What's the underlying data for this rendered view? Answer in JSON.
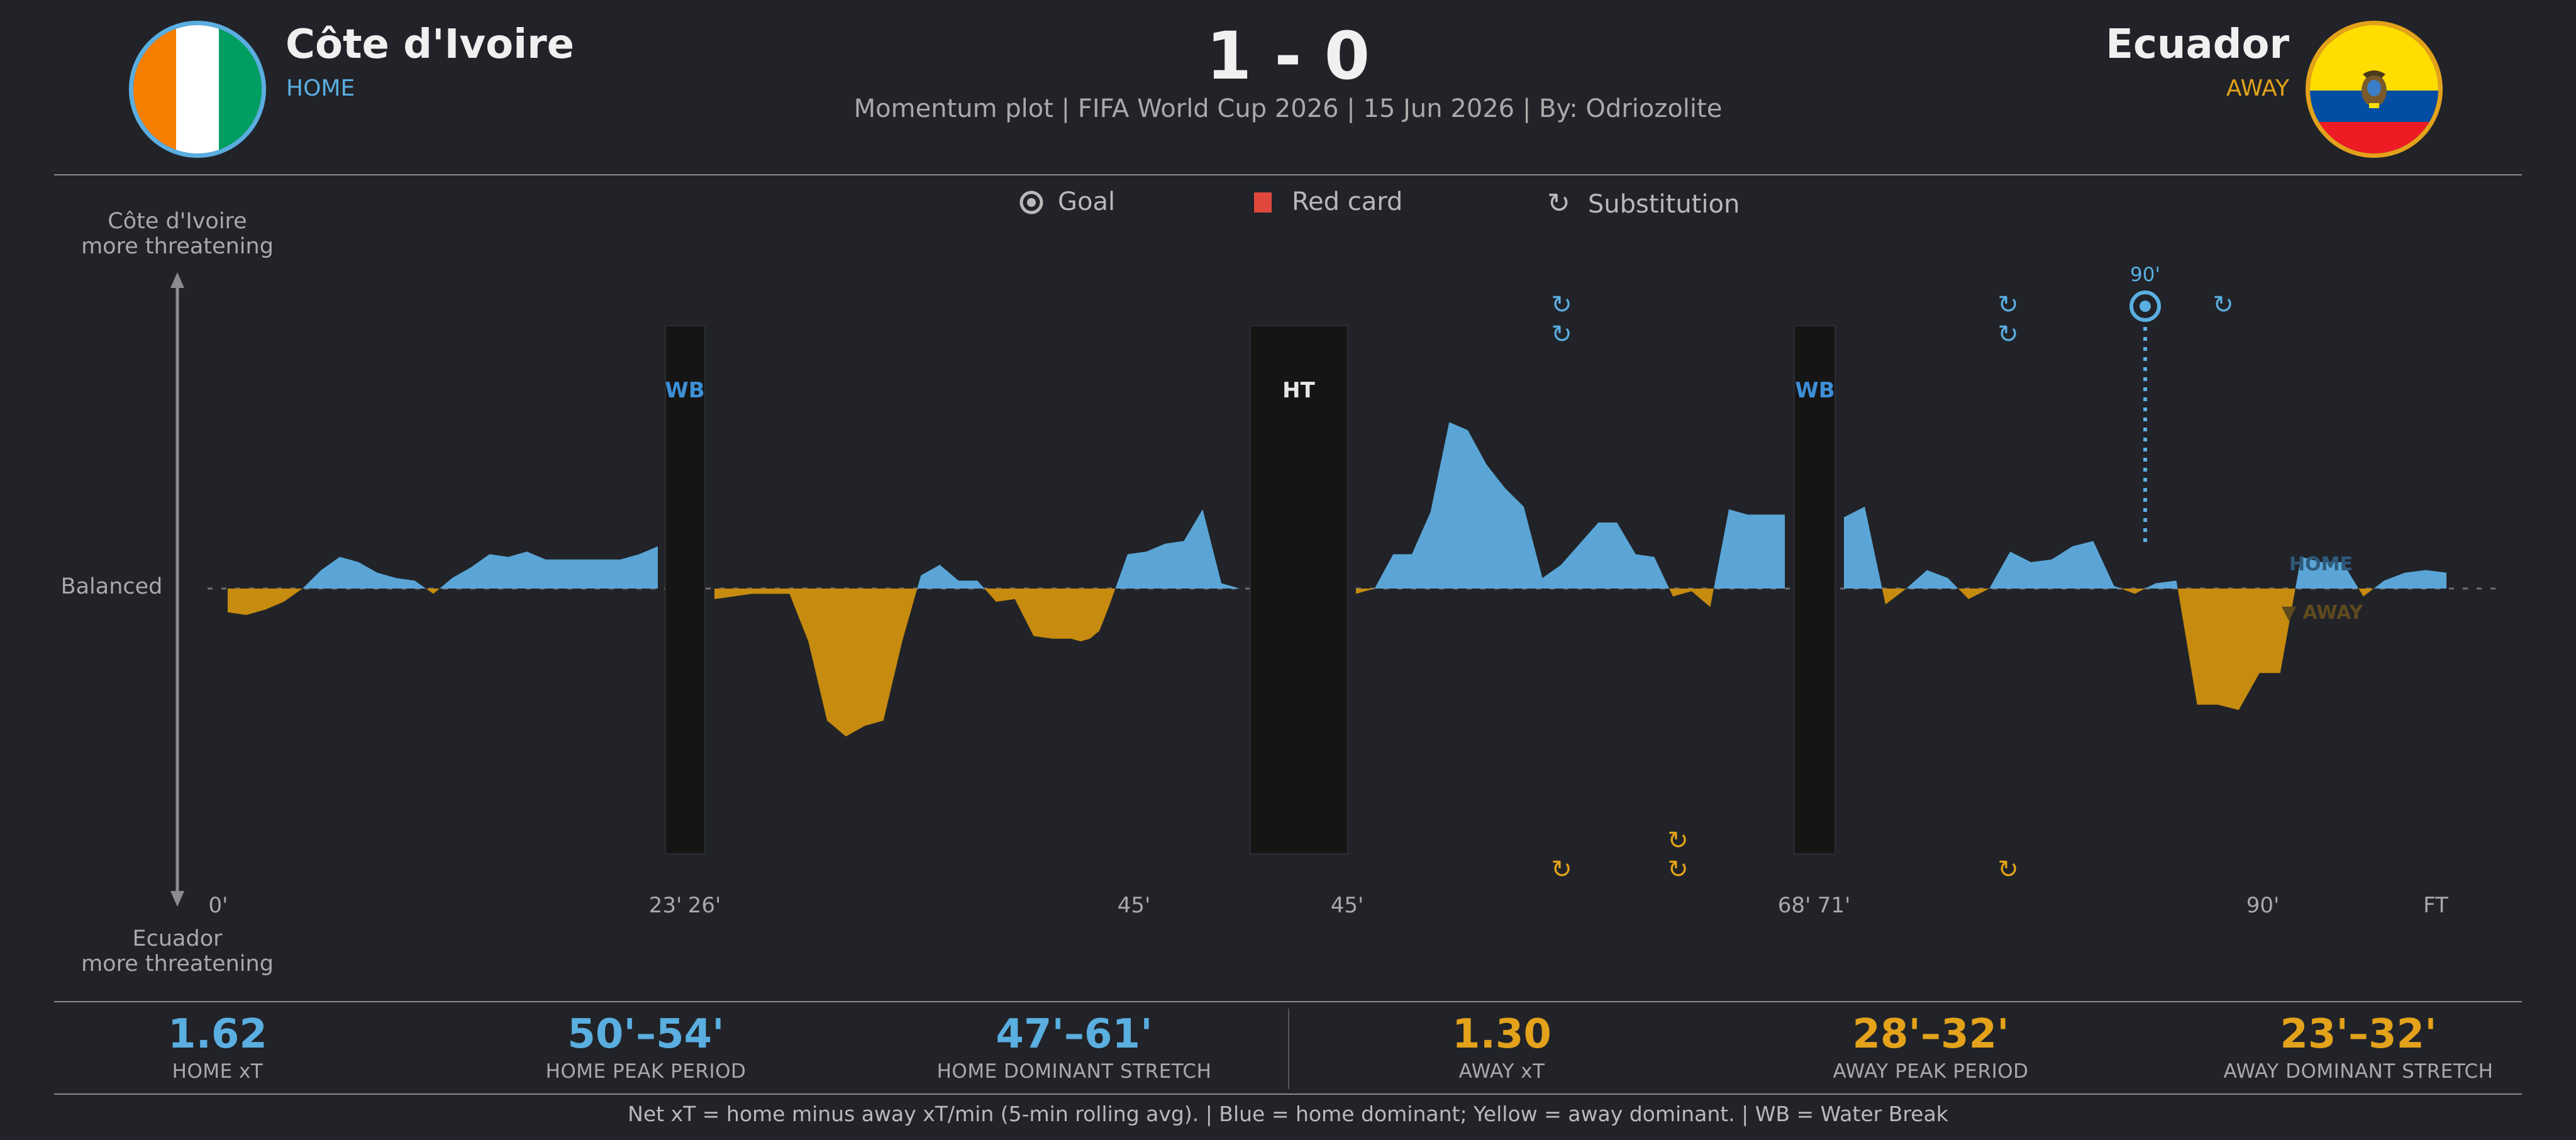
{
  "header": {
    "home": {
      "name": "Côte d'Ivoire",
      "role": "HOME",
      "color": "#5aaee0"
    },
    "away": {
      "name": "Ecuador",
      "role": "AWAY",
      "color": "#e3a21a"
    },
    "score": "1 - 0",
    "subtitle": "Momentum plot | FIFA World Cup 2026 |  15 Jun 2026 | By: Odriozolite"
  },
  "legend": {
    "goal": "Goal",
    "red_card": "Red card",
    "substitution": "Substitution",
    "red_color": "#e0483e"
  },
  "axis": {
    "top_label_line1": "Côte d'Ivoire",
    "top_label_line2": "more threatening",
    "middle_label": "Balanced",
    "bottom_label_line1": "Ecuador",
    "bottom_label_line2": "more threatening"
  },
  "chart_data": {
    "type": "area",
    "home_color": "#5aa5d6",
    "away_color": "#c68b0f",
    "ylim": [
      -1,
      1
    ],
    "segments": [
      {
        "x": [
          0,
          1,
          2,
          3,
          4,
          5,
          6,
          7,
          8,
          9,
          10,
          11,
          12,
          13,
          14,
          15,
          16,
          17,
          18,
          19,
          20,
          21,
          22,
          23
        ],
        "y": [
          -0.09,
          -0.1,
          -0.08,
          -0.05,
          0,
          0.07,
          0.12,
          0.1,
          0.06,
          0.04,
          0.03,
          -0.02,
          0.04,
          0.08,
          0.13,
          0.12,
          0.14,
          0.11,
          0.11,
          0.11,
          0.11,
          0.11,
          0.13,
          0.16
        ]
      },
      {
        "x": [
          26,
          28,
          30,
          31,
          32,
          33,
          34,
          35,
          36,
          37,
          38,
          39,
          40,
          41,
          42,
          43,
          44,
          45,
          45.5,
          46,
          46.5,
          47,
          48,
          49,
          50,
          51,
          52,
          53,
          54
        ],
        "y": [
          -0.04,
          -0.02,
          -0.02,
          -0.2,
          -0.5,
          -0.56,
          -0.52,
          -0.5,
          -0.2,
          0.05,
          0.09,
          0.03,
          0.03,
          -0.05,
          -0.04,
          -0.18,
          -0.19,
          -0.19,
          -0.2,
          -0.19,
          -0.16,
          -0.07,
          0.13,
          0.14,
          0.17,
          0.18,
          0.3,
          0.02,
          0
        ]
      },
      {
        "x": [
          45,
          46,
          47,
          48,
          49,
          50,
          51,
          52,
          53,
          54,
          55,
          56,
          57,
          58,
          59,
          60,
          61,
          62,
          63,
          64,
          65,
          66,
          67,
          68
        ],
        "y": [
          -0.02,
          0,
          0.13,
          0.13,
          0.29,
          0.63,
          0.6,
          0.47,
          0.38,
          0.31,
          0.04,
          0.09,
          0.17,
          0.25,
          0.25,
          0.13,
          0.12,
          -0.03,
          -0.01,
          -0.07,
          0.3,
          0.28,
          0.28,
          0.28
        ]
      },
      {
        "x": [
          71,
          72,
          73,
          74,
          75,
          76,
          77,
          78,
          79,
          80,
          81,
          82,
          83,
          84,
          85,
          86,
          87,
          88,
          89,
          90,
          91,
          92,
          93,
          94,
          95,
          96,
          97,
          98,
          99,
          100
        ],
        "y": [
          0.27,
          0.31,
          -0.06,
          0,
          0.07,
          0.04,
          -0.04,
          0,
          0.14,
          0.1,
          0.11,
          0.16,
          0.18,
          0.01,
          -0.02,
          0.02,
          0.03,
          -0.44,
          -0.44,
          -0.46,
          -0.32,
          -0.32,
          0.12,
          0.1,
          0.1,
          -0.03,
          0.03,
          0.06,
          0.07,
          0.06
        ]
      }
    ],
    "breaks": [
      {
        "label": "WB",
        "start": 23,
        "end": 26
      },
      {
        "label": "HT",
        "start": 45,
        "end": 45
      },
      {
        "label": "WB",
        "start": 68,
        "end": 71
      }
    ],
    "x_ticks": [
      "0'",
      "23'",
      "26'",
      "45'",
      "45'",
      "68'",
      "71'",
      "90'",
      "FT"
    ],
    "goal": {
      "minute": 90,
      "team": "home",
      "label": "90'"
    },
    "home_subs": [
      "sub",
      "sub",
      "sub",
      "sub",
      "sub"
    ],
    "away_subs": [
      "sub",
      "sub",
      "sub",
      "sub"
    ],
    "home_hint": "HOME",
    "away_hint": "▼ AWAY",
    "grid": false
  },
  "stats": [
    {
      "value": "1.62",
      "label": "HOME xT",
      "team": "home"
    },
    {
      "value": "50'–54'",
      "label": "HOME PEAK PERIOD",
      "team": "home"
    },
    {
      "value": "47'–61'",
      "label": "HOME DOMINANT STRETCH",
      "team": "home"
    },
    {
      "value": "1.30",
      "label": "AWAY xT",
      "team": "away"
    },
    {
      "value": "28'–32'",
      "label": "AWAY PEAK PERIOD",
      "team": "away"
    },
    {
      "value": "23'–32'",
      "label": "AWAY DOMINANT STRETCH",
      "team": "away"
    }
  ],
  "footer": "Net xT = home minus away xT/min (5-min rolling avg).  |  Blue = home dominant; Yellow = away dominant.  |  WB = Water Break"
}
